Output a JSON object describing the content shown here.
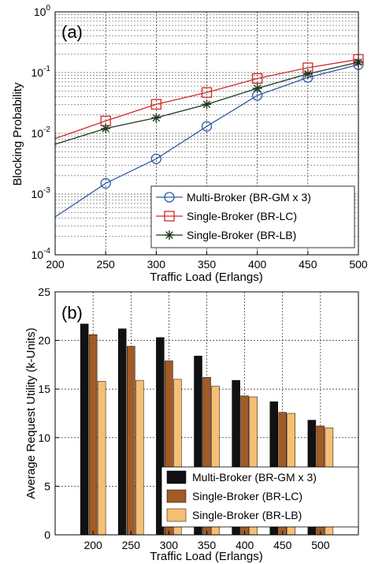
{
  "chart_data": [
    {
      "type": "line",
      "panel_label": "(a)",
      "xlabel": "Traffic Load (Erlangs)",
      "ylabel": "Blocking Probability",
      "yscale": "log",
      "xlim": [
        200,
        500
      ],
      "ylim": [
        0.0001,
        1
      ],
      "xticks": [
        "200",
        "250",
        "300",
        "350",
        "400",
        "450",
        "500"
      ],
      "yticks": [
        {
          "base": "10",
          "exp": "-4",
          "value": 0.0001
        },
        {
          "base": "10",
          "exp": "-3",
          "value": 0.001
        },
        {
          "base": "10",
          "exp": "-2",
          "value": 0.01
        },
        {
          "base": "10",
          "exp": "-1",
          "value": 0.1
        },
        {
          "base": "10",
          "exp": "0",
          "value": 1
        }
      ],
      "grid": true,
      "legend_position": "lower-right",
      "x": [
        200,
        250,
        300,
        350,
        400,
        450,
        500
      ],
      "series": [
        {
          "name": "Multi-Broker (BR-GM x 3)",
          "color": "#2e5aa6",
          "marker": "circle",
          "values": [
            0.00042,
            0.0015,
            0.0038,
            0.013,
            0.042,
            0.083,
            0.135
          ]
        },
        {
          "name": "Single-Broker (BR-LC)",
          "color": "#d42a2a",
          "marker": "square",
          "values": [
            0.0082,
            0.016,
            0.03,
            0.047,
            0.08,
            0.12,
            0.165
          ]
        },
        {
          "name": "Single-Broker (BR-LB)",
          "color": "#1f3a1f",
          "marker": "asterisk",
          "values": [
            0.0066,
            0.012,
            0.018,
            0.03,
            0.055,
            0.095,
            0.148
          ]
        }
      ],
      "marker_x": [
        250,
        300,
        350,
        400,
        450,
        500
      ]
    },
    {
      "type": "bar",
      "panel_label": "(b)",
      "xlabel": "Traffic Load (Erlangs)",
      "ylabel": "Average Request Utility (k-Units)",
      "ylim": [
        0,
        25
      ],
      "yticks": [
        "0",
        "5",
        "10",
        "15",
        "20",
        "25"
      ],
      "categories": [
        "200",
        "250",
        "300",
        "350",
        "400",
        "450",
        "500"
      ],
      "grid": true,
      "legend_position": "lower-right",
      "series": [
        {
          "name": "Multi-Broker (BR-GM x 3)",
          "color": "#111111",
          "values": [
            21.7,
            21.2,
            20.3,
            18.4,
            15.9,
            13.7,
            11.8
          ]
        },
        {
          "name": "Single-Broker (BR-LC)",
          "color": "#a25a26",
          "values": [
            20.6,
            19.4,
            17.9,
            16.2,
            14.3,
            12.6,
            11.2
          ]
        },
        {
          "name": "Single-Broker (BR-LB)",
          "color": "#f7bf73",
          "values": [
            15.8,
            15.9,
            16.0,
            15.3,
            14.2,
            12.5,
            11.0
          ]
        }
      ]
    }
  ]
}
